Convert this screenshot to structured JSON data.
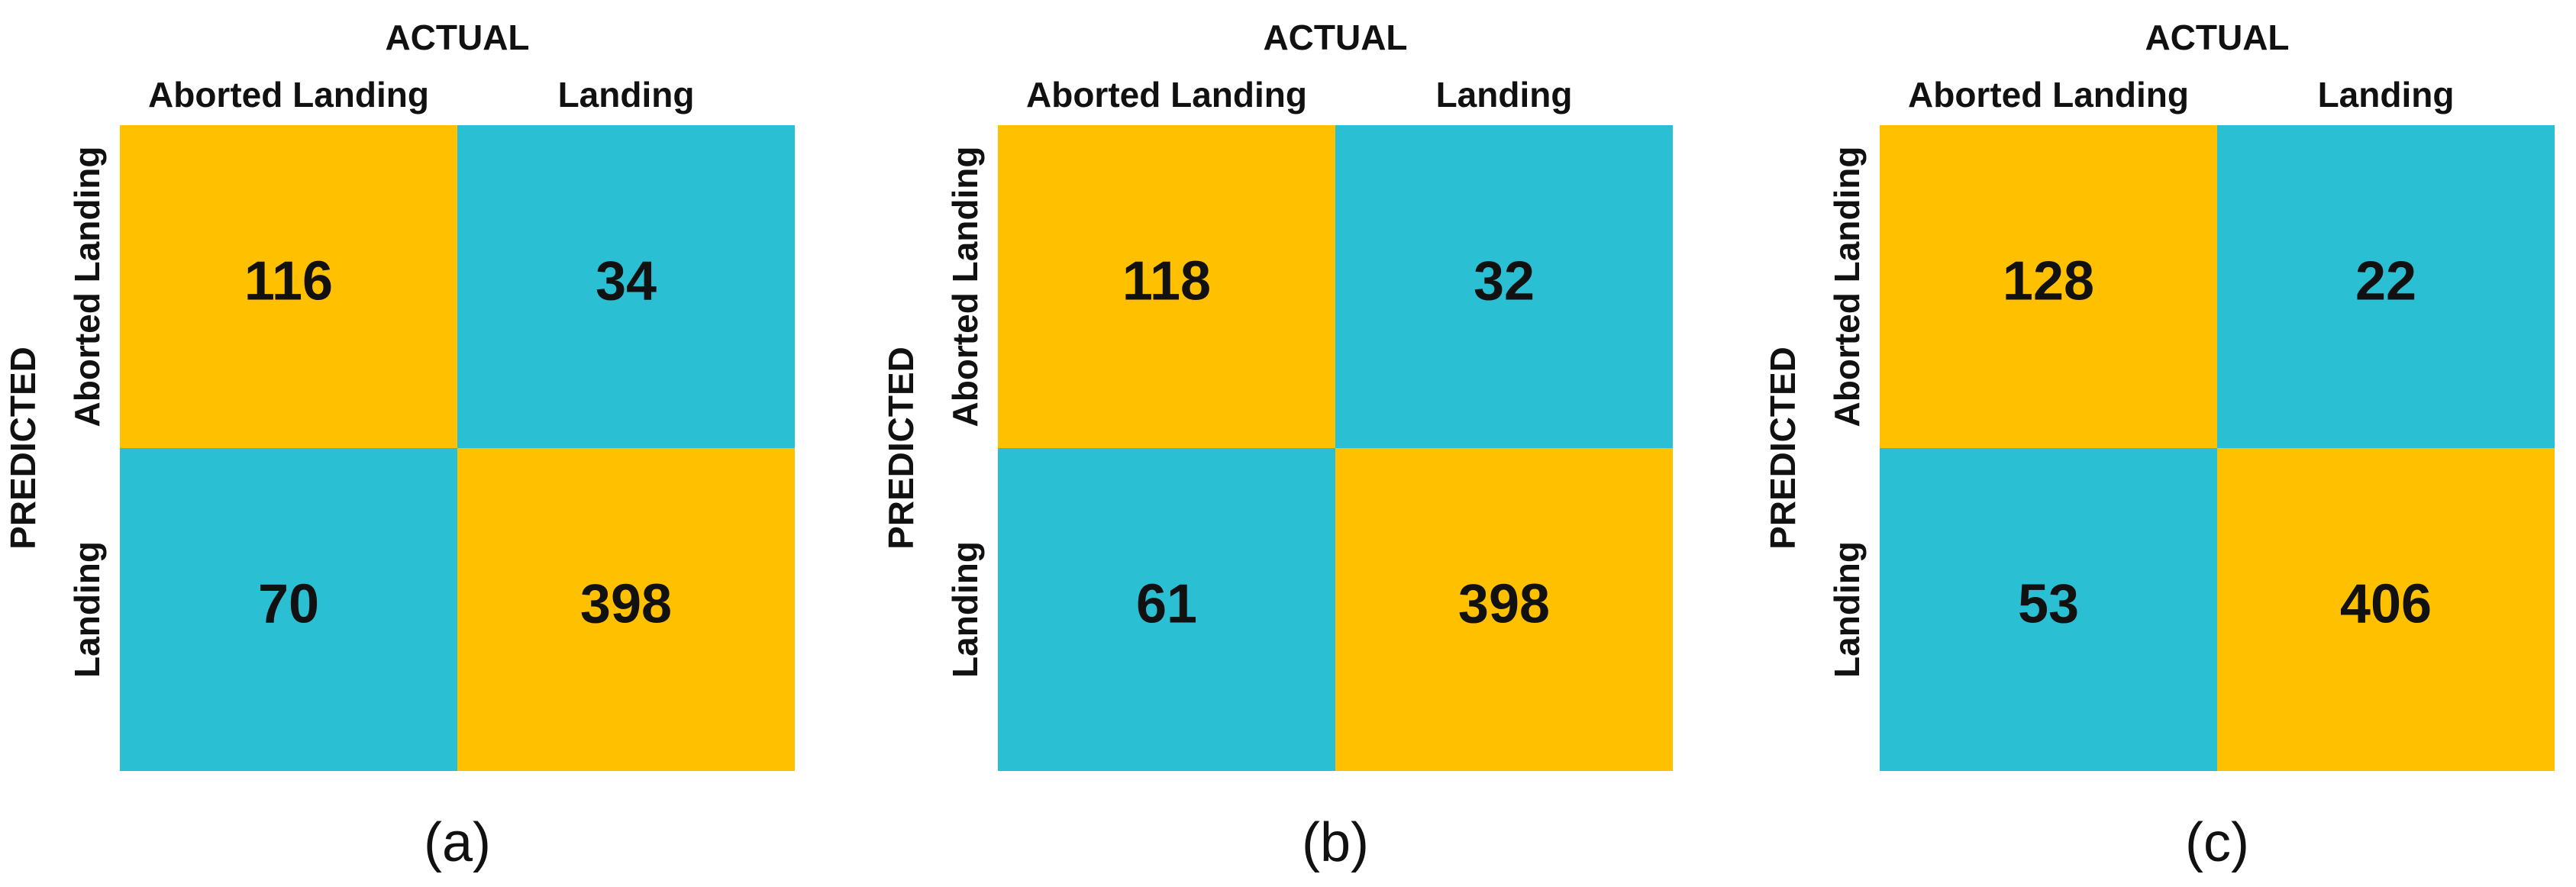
{
  "colors": {
    "correct_cell": "#FFC000",
    "error_cell": "#2BBFD3",
    "text": "#111111"
  },
  "chart_data": [
    {
      "type": "heatmap",
      "caption": "(a)",
      "xlabel": "ACTUAL",
      "ylabel": "PREDICTED",
      "x_categories": [
        "Aborted Landing",
        "Landing"
      ],
      "y_categories": [
        "Aborted Landing",
        "Landing"
      ],
      "values": [
        [
          116,
          34
        ],
        [
          70,
          398
        ]
      ]
    },
    {
      "type": "heatmap",
      "caption": "(b)",
      "xlabel": "ACTUAL",
      "ylabel": "PREDICTED",
      "x_categories": [
        "Aborted Landing",
        "Landing"
      ],
      "y_categories": [
        "Aborted Landing",
        "Landing"
      ],
      "values": [
        [
          118,
          32
        ],
        [
          61,
          398
        ]
      ]
    },
    {
      "type": "heatmap",
      "caption": "(c)",
      "xlabel": "ACTUAL",
      "ylabel": "PREDICTED",
      "x_categories": [
        "Aborted Landing",
        "Landing"
      ],
      "y_categories": [
        "Aborted Landing",
        "Landing"
      ],
      "values": [
        [
          128,
          22
        ],
        [
          53,
          406
        ]
      ]
    }
  ]
}
